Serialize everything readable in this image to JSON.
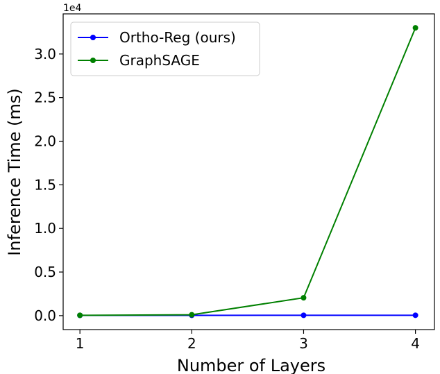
{
  "chart_data": {
    "type": "line",
    "title": "",
    "xlabel": "Number of Layers",
    "ylabel": "Inference Time (ms)",
    "y_scale_label": "1e4",
    "x": [
      1,
      2,
      3,
      4
    ],
    "x_ticks": [
      1,
      2,
      3,
      4
    ],
    "x_tick_labels": [
      "1",
      "2",
      "3",
      "4"
    ],
    "y_ticks": [
      0.0,
      0.5,
      1.0,
      1.5,
      2.0,
      2.5,
      3.0
    ],
    "y_tick_labels": [
      "0.0",
      "0.5",
      "1.0",
      "1.5",
      "2.0",
      "2.5",
      "3.0"
    ],
    "xlim": [
      0.85,
      4.17
    ],
    "ylim": [
      -1600,
      34600
    ],
    "grid": false,
    "legend_position": "top-left",
    "series": [
      {
        "name": "Ortho-Reg (ours)",
        "color": "#0000ff",
        "values": [
          30,
          35,
          40,
          45
        ]
      },
      {
        "name": "GraphSAGE",
        "color": "#008000",
        "values": [
          40,
          100,
          2050,
          33000
        ]
      }
    ]
  }
}
